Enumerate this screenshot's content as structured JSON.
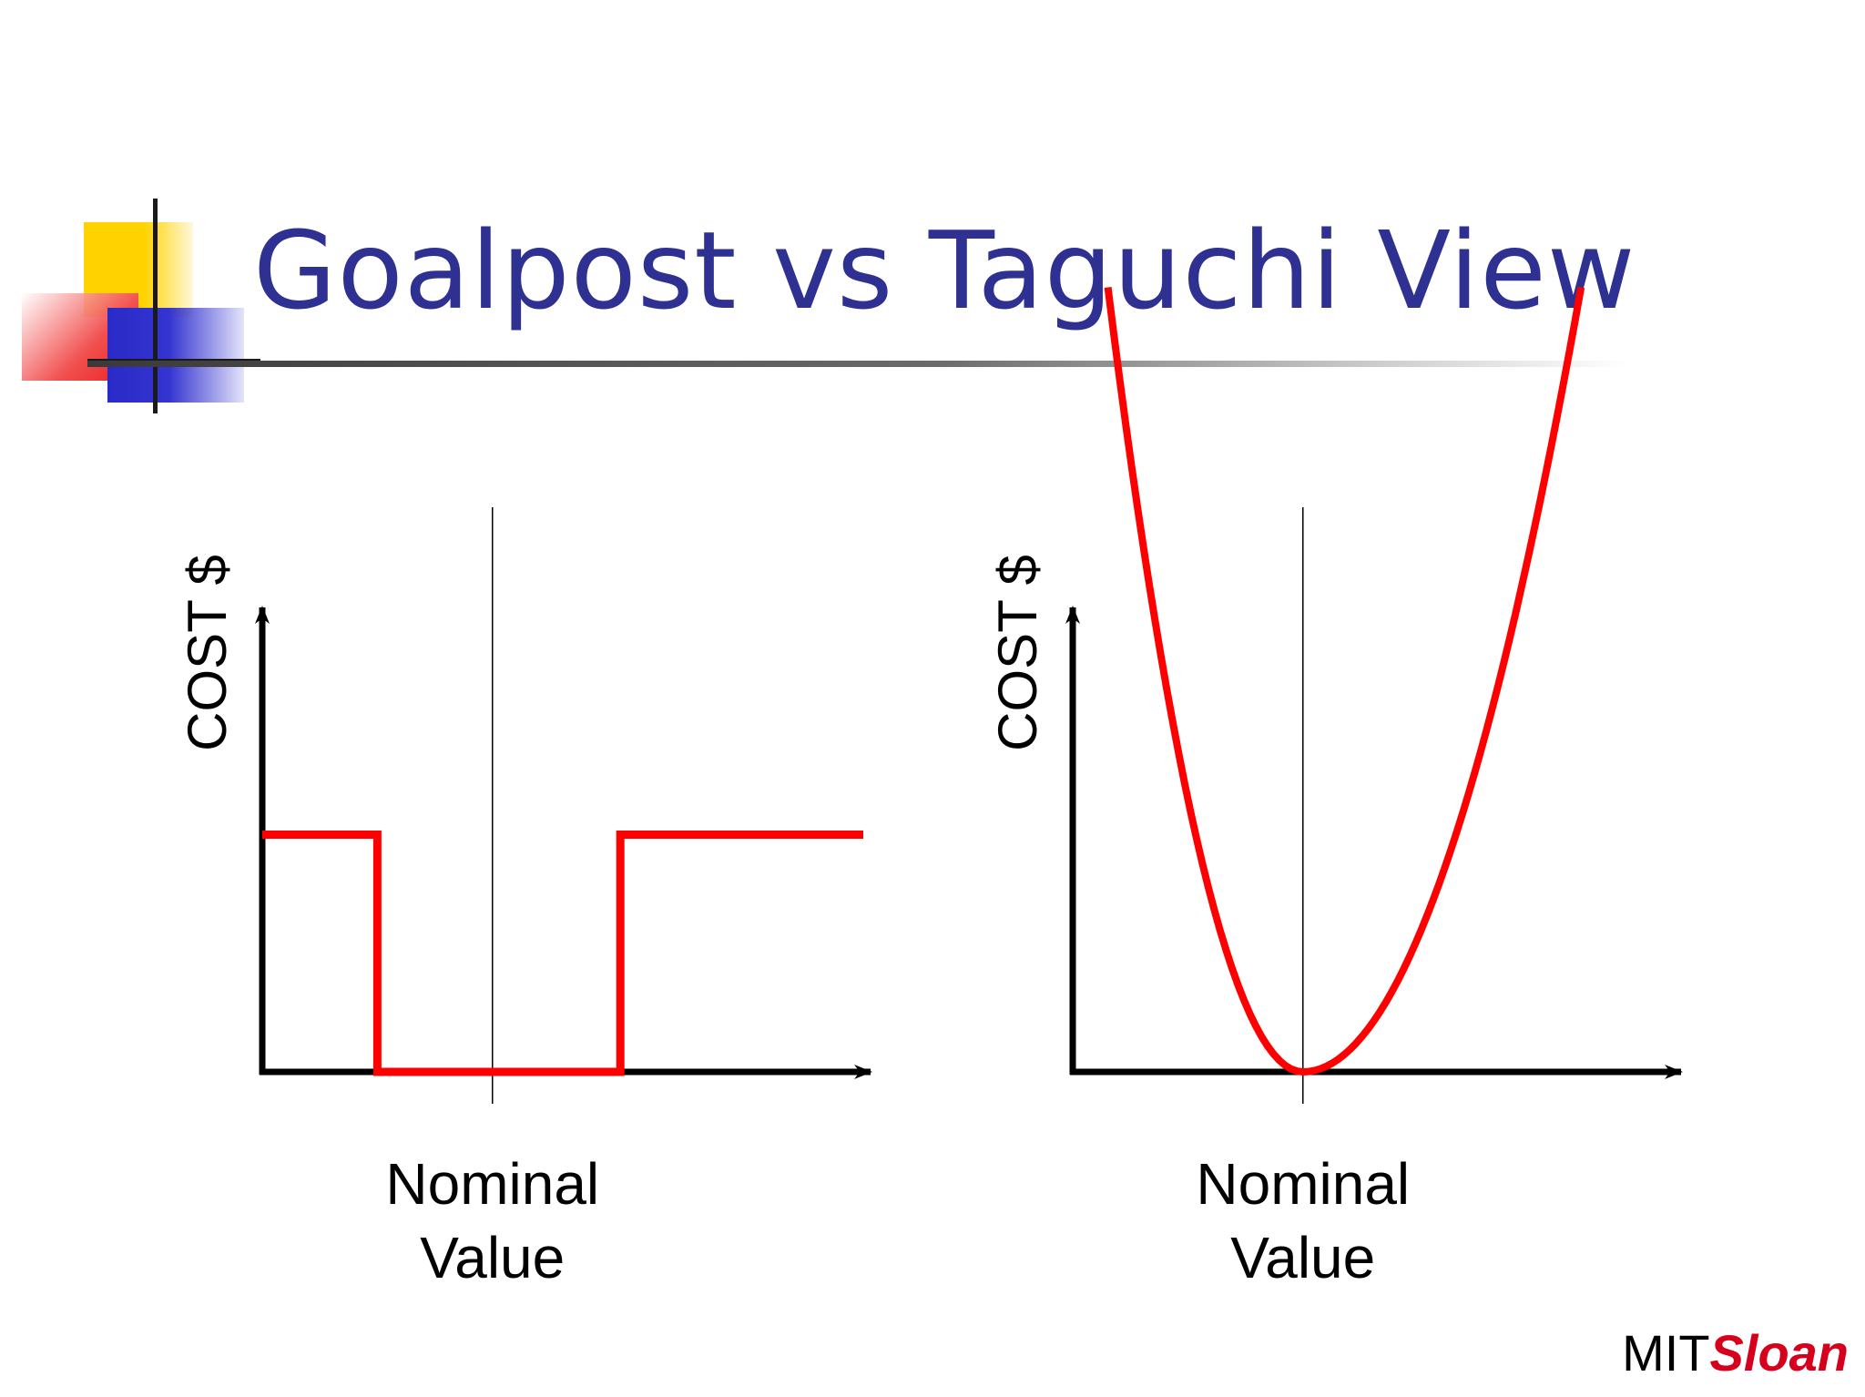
{
  "slide": {
    "title": "Goalpost vs Taguchi View",
    "brand": {
      "part1": "MIT",
      "part2": "Sloan",
      "part2_color": "#d6001c"
    },
    "title_color": "#2e3192"
  },
  "chart_data": [
    {
      "type": "line",
      "ylabel": "COST $",
      "xlabel_line1": "Nominal",
      "xlabel_line2": "Value",
      "reference_line": "nominal value (vertical line)",
      "x": [
        0,
        1.8,
        1.8,
        3.8,
        3.8,
        5.6,
        5.6,
        9.4
      ],
      "y": [
        0.75,
        0.75,
        0,
        0,
        0,
        0,
        0.75,
        0.75
      ],
      "x_nominal": 3.6,
      "xlim": [
        0,
        9.4
      ],
      "ylim": [
        0,
        1.9
      ],
      "line_color": "#ff0000"
    },
    {
      "type": "line",
      "ylabel": "COST $",
      "xlabel_line1": "Nominal",
      "xlabel_line2": "Value",
      "reference_line": "nominal value (vertical line)",
      "shape": "parabola",
      "x_nominal": 3.6,
      "y_min": 0,
      "xlim": [
        0,
        9.4
      ],
      "ylim": [
        0,
        1.9
      ],
      "line_color": "#ff0000"
    }
  ]
}
